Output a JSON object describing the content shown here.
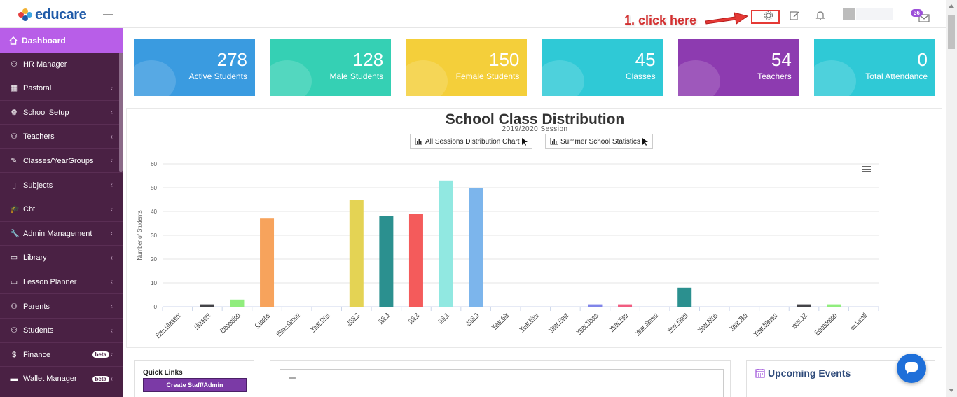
{
  "app": {
    "logo_text": "educare"
  },
  "topbar": {
    "annotation_text": "1. click here",
    "mail_badge": "36",
    "icons": [
      "settings-gear-icon",
      "edit-icon",
      "bell-icon",
      "mail-icon"
    ],
    "annotation_color": "#d23030"
  },
  "sidebar": {
    "active": {
      "label": "Dashboard",
      "icon": "home-icon"
    },
    "items": [
      {
        "label": "HR Manager",
        "icon": "users-icon",
        "chevron": ""
      },
      {
        "label": "Pastoral",
        "icon": "table-icon",
        "chevron": "‹"
      },
      {
        "label": "School Setup",
        "icon": "gear-icon",
        "chevron": "‹"
      },
      {
        "label": "Teachers",
        "icon": "users-icon",
        "chevron": "‹"
      },
      {
        "label": "Classes/YearGroups",
        "icon": "edit-icon",
        "chevron": "‹"
      },
      {
        "label": "Subjects",
        "icon": "book-icon",
        "chevron": "‹"
      },
      {
        "label": "Cbt",
        "icon": "graduation-cap-icon",
        "chevron": "‹"
      },
      {
        "label": "Admin Management",
        "icon": "wrench-icon",
        "chevron": "‹"
      },
      {
        "label": "Library",
        "icon": "library-icon",
        "chevron": "‹"
      },
      {
        "label": "Lesson Planner",
        "icon": "planner-icon",
        "chevron": "‹"
      },
      {
        "label": "Parents",
        "icon": "user-icon",
        "chevron": "‹"
      },
      {
        "label": "Students",
        "icon": "user-icon",
        "chevron": "‹"
      },
      {
        "label": "Finance",
        "icon": "dollar-icon",
        "chevron": "‹",
        "badge": "beta"
      },
      {
        "label": "Wallet Manager",
        "icon": "wallet-icon",
        "chevron": "‹",
        "badge": "beta"
      }
    ]
  },
  "cards": [
    {
      "value": "278",
      "label": "Active Students",
      "color": "#3a9be0"
    },
    {
      "value": "128",
      "label": "Male Students",
      "color": "#35d0b4"
    },
    {
      "value": "150",
      "label": "Female Students",
      "color": "#f4cf3a"
    },
    {
      "value": "45",
      "label": "Classes",
      "color": "#2fc9d6"
    },
    {
      "value": "54",
      "label": "Teachers",
      "color": "#8d3bb0"
    },
    {
      "value": "0",
      "label": "Total Attendance",
      "color": "#2fc9d6"
    }
  ],
  "chart_panel": {
    "title": "School Class Distribution",
    "subtitle": "2019/2020 Session",
    "button_all": "All Sessions Distribution Chart",
    "button_summer": "Summer School Statistics"
  },
  "chart_data": {
    "type": "bar",
    "ylabel": "Number of Students",
    "xlabel": "",
    "ylim": [
      0,
      60
    ],
    "yticks": [
      0,
      10,
      20,
      30,
      40,
      50,
      60
    ],
    "grid": true,
    "categories": [
      "Pre- Nursery",
      "Nursery",
      "Reception",
      "Creche",
      "Play- Group",
      "Year One",
      "JSS 2",
      "SS 3",
      "SS 2",
      "SS 1",
      "JSS 3",
      "Year Six",
      "Year Five",
      "Year Four",
      "Year Three",
      "Year Two",
      "Year Seven",
      "Year Eight",
      "Year Nine",
      "Year Ten",
      "Year Eleven",
      "year 12",
      "Foundation",
      "A- Level"
    ],
    "values": [
      0,
      1,
      3,
      37,
      0,
      0,
      45,
      38,
      39,
      53,
      50,
      0,
      0,
      0,
      1,
      1,
      0,
      8,
      0,
      0,
      0,
      1,
      1,
      0
    ],
    "colors": [
      "#7cb5ec",
      "#434348",
      "#90ed7d",
      "#f7a35c",
      "#8085e9",
      "#f15c80",
      "#e4d354",
      "#2b908f",
      "#f45b5b",
      "#91e8e1",
      "#7cb5ec",
      "#434348",
      "#90ed7d",
      "#f7a35c",
      "#8085e9",
      "#f15c80",
      "#e4d354",
      "#2b908f",
      "#f45b5b",
      "#91e8e1",
      "#7cb5ec",
      "#434348",
      "#90ed7d",
      "#f7a35c"
    ]
  },
  "quick_links": {
    "title": "Quick Links",
    "create_button": "Create Staff/Admin"
  },
  "events": {
    "title": "Upcoming Events"
  }
}
